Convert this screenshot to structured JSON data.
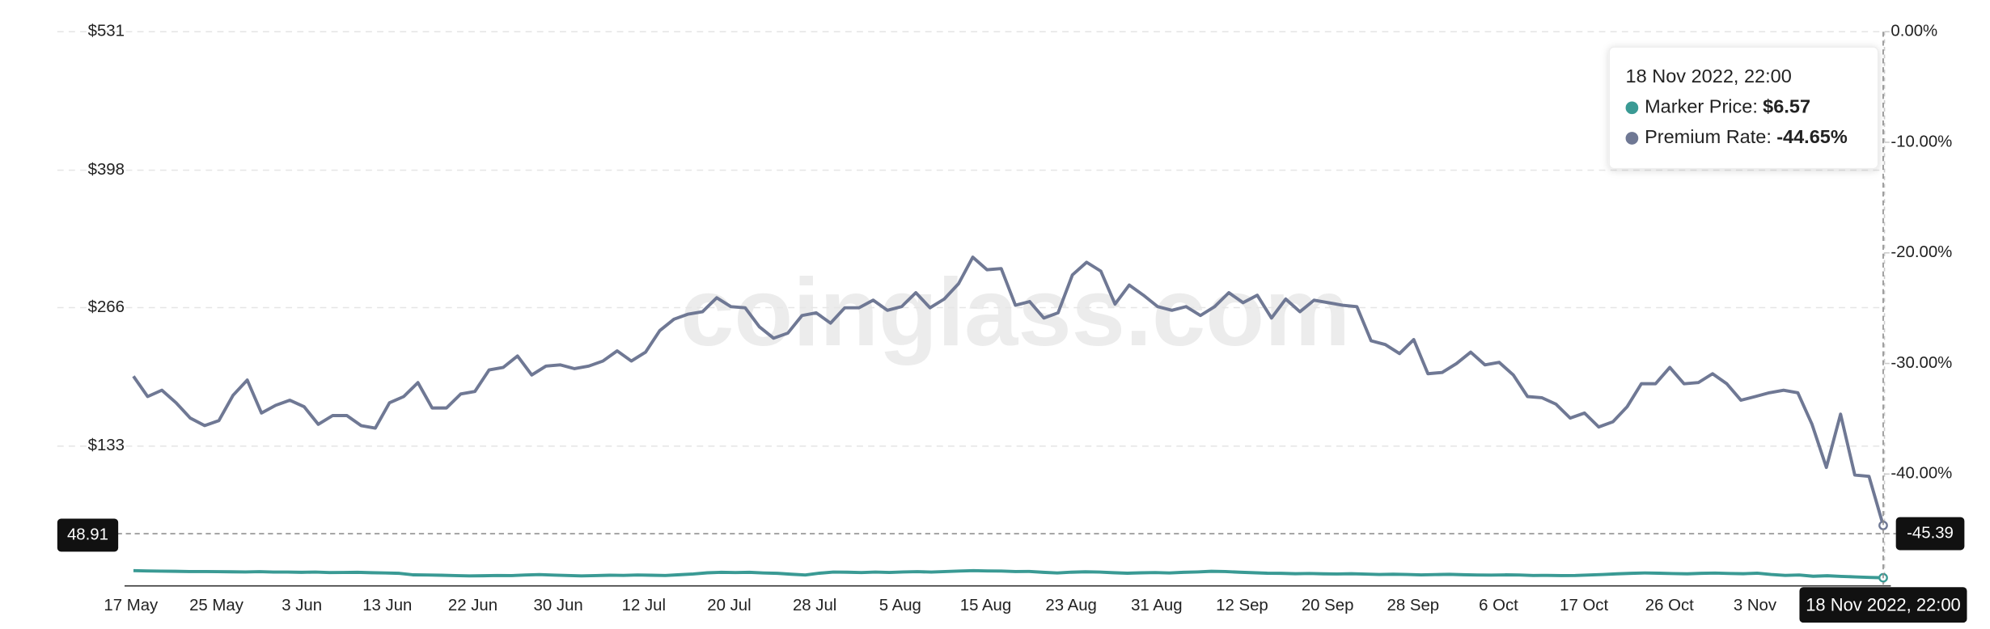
{
  "chart_data": {
    "type": "line",
    "watermark": "coinglass.com",
    "x_labels": [
      "17 May",
      "25 May",
      "3 Jun",
      "13 Jun",
      "22 Jun",
      "30 Jun",
      "12 Jul",
      "20 Jul",
      "28 Jul",
      "5 Aug",
      "15 Aug",
      "23 Aug",
      "31 Aug",
      "12 Sep",
      "20 Sep",
      "28 Sep",
      "6 Oct",
      "17 Oct",
      "26 Oct",
      "3 Nov"
    ],
    "ylim": [
      0,
      531
    ],
    "yticks": [
      {
        "value": 531,
        "label": "$531"
      },
      {
        "value": 398,
        "label": "$398"
      },
      {
        "value": 266,
        "label": "$266"
      },
      {
        "value": 133,
        "label": "$133"
      }
    ],
    "y2lim": [
      -50,
      0
    ],
    "y2ticks": [
      {
        "value": 0,
        "label": "0.00%"
      },
      {
        "value": -10,
        "label": "-10.00%"
      },
      {
        "value": -20,
        "label": "-20.00%"
      },
      {
        "value": -30,
        "label": "-30.00%"
      },
      {
        "value": -40,
        "label": "-40.00%"
      }
    ],
    "grid": true,
    "series": [
      {
        "name": "Marker Price",
        "color": "#3a9a94",
        "axis": "y",
        "values": [
          13.4,
          13.1,
          12.9,
          12.8,
          12.6,
          12.5,
          12.4,
          12.3,
          12.2,
          12.4,
          12.1,
          12.0,
          11.8,
          12.0,
          11.6,
          11.7,
          11.8,
          11.5,
          11.2,
          10.9,
          9.4,
          9.2,
          9.0,
          8.6,
          8.4,
          8.5,
          8.8,
          8.7,
          9.3,
          9.6,
          9.1,
          8.8,
          8.4,
          8.6,
          9.0,
          8.9,
          9.3,
          9.0,
          8.8,
          9.5,
          10.2,
          11.3,
          11.8,
          11.6,
          11.8,
          11.2,
          10.8,
          10.0,
          9.2,
          11.0,
          12.1,
          11.9,
          11.6,
          12.0,
          11.7,
          12.2,
          12.4,
          12.0,
          12.6,
          13.0,
          13.4,
          13.2,
          13.0,
          12.5,
          12.7,
          11.8,
          11.2,
          11.9,
          12.3,
          12.1,
          11.5,
          11.0,
          11.3,
          11.6,
          11.2,
          11.8,
          12.2,
          12.8,
          12.5,
          11.9,
          11.4,
          11.0,
          10.8,
          10.5,
          10.7,
          10.4,
          10.2,
          10.5,
          10.1,
          9.8,
          10.0,
          9.7,
          9.4,
          9.6,
          9.9,
          9.5,
          9.3,
          9.1,
          9.4,
          9.2,
          8.8,
          8.9,
          8.6,
          8.8,
          9.2,
          9.8,
          10.4,
          10.9,
          11.2,
          11.0,
          10.6,
          10.3,
          10.8,
          11.1,
          10.7,
          10.5,
          11.0,
          9.8,
          8.9,
          9.3,
          8.0,
          8.5,
          7.9,
          7.4,
          6.9,
          6.57
        ]
      },
      {
        "name": "Premium Rate",
        "color": "#6f7894",
        "axis": "y2",
        "values": [
          -31.16,
          -32.99,
          -32.42,
          -33.56,
          -34.94,
          -35.62,
          -35.17,
          -32.88,
          -31.5,
          -34.48,
          -33.79,
          -33.33,
          -33.91,
          -35.51,
          -34.71,
          -34.71,
          -35.62,
          -35.85,
          -33.56,
          -32.99,
          -31.73,
          -34.02,
          -34.02,
          -32.76,
          -32.53,
          -30.58,
          -30.36,
          -29.32,
          -31.04,
          -30.24,
          -30.13,
          -30.47,
          -30.24,
          -29.78,
          -28.87,
          -29.78,
          -28.98,
          -27.03,
          -26.0,
          -25.54,
          -25.32,
          -24.06,
          -24.86,
          -24.97,
          -26.69,
          -27.72,
          -27.26,
          -25.66,
          -25.43,
          -26.35,
          -24.97,
          -24.97,
          -24.28,
          -25.2,
          -24.86,
          -23.6,
          -24.97,
          -24.17,
          -22.79,
          -20.39,
          -21.53,
          -21.42,
          -24.74,
          -24.4,
          -25.89,
          -25.43,
          -21.99,
          -20.85,
          -21.65,
          -24.63,
          -22.91,
          -23.83,
          -24.86,
          -25.2,
          -24.86,
          -25.66,
          -24.86,
          -23.6,
          -24.51,
          -23.83,
          -25.89,
          -24.17,
          -25.32,
          -24.28,
          -24.51,
          -24.74,
          -24.86,
          -27.95,
          -28.29,
          -29.1,
          -27.84,
          -30.93,
          -30.81,
          -30.01,
          -28.98,
          -30.13,
          -29.9,
          -31.04,
          -32.99,
          -33.1,
          -33.68,
          -34.94,
          -34.48,
          -35.74,
          -35.28,
          -33.91,
          -31.84,
          -31.84,
          -30.36,
          -31.84,
          -31.73,
          -30.93,
          -31.84,
          -33.33,
          -32.99,
          -32.65,
          -32.42,
          -32.65,
          -35.51,
          -39.4,
          -34.59,
          -40.09,
          -40.21,
          -44.65
        ]
      }
    ],
    "crosshair": {
      "x_label": "18 Nov 2022, 22:00",
      "y": 48.91,
      "y2": -45.39
    },
    "tooltip": {
      "title": "18 Nov 2022, 22:00",
      "items": [
        {
          "label": "Marker Price:",
          "value": "$6.57"
        },
        {
          "label": "Premium Rate:",
          "value": "-44.65%"
        }
      ]
    }
  }
}
